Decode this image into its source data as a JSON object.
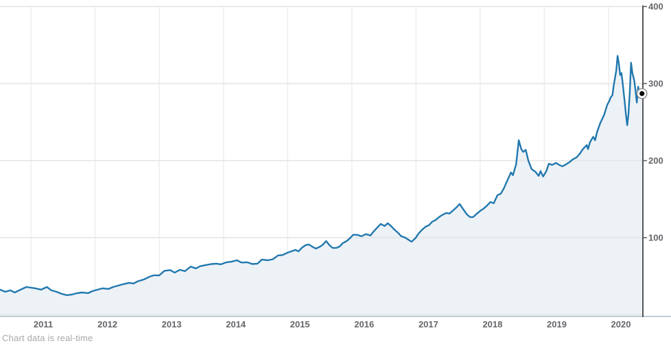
{
  "footer": {
    "note": "Chart data is real-time"
  },
  "colors": {
    "line": "#2178ae",
    "area_fill": "#edf2f7",
    "h_gridline": "#e4e4e4",
    "v_gridline": "#efefef",
    "right_axis": "#55565a",
    "bottom_axis": "#c3cdd4",
    "tick_label": "#65666a",
    "marker_center": "#0a0a0a",
    "marker_ring": "#8a8a8a",
    "footnote_text": "#a6a9ab"
  },
  "chart_data": {
    "type": "area",
    "title": "",
    "xlabel": "",
    "ylabel": "",
    "legend": "none",
    "grid": true,
    "x_ticks": [
      2011,
      2012,
      2013,
      2014,
      2015,
      2016,
      2017,
      2018,
      2019,
      2020
    ],
    "y_ticks": [
      100,
      200,
      300,
      400
    ],
    "xlim": [
      2010.52,
      2020.53
    ],
    "ylim": [
      0,
      400
    ],
    "y_axis_side": "right",
    "latest_marker": {
      "year": 2020.52,
      "price": 287.0
    },
    "points": [
      [
        2010.52,
        32.5
      ],
      [
        2010.6,
        29.8
      ],
      [
        2010.68,
        31.6
      ],
      [
        2010.75,
        28.9
      ],
      [
        2010.84,
        32.5
      ],
      [
        2010.93,
        36.0
      ],
      [
        2011.0,
        35.1
      ],
      [
        2011.07,
        34.3
      ],
      [
        2011.16,
        32.5
      ],
      [
        2011.25,
        36.0
      ],
      [
        2011.32,
        31.6
      ],
      [
        2011.4,
        29.8
      ],
      [
        2011.48,
        27.1
      ],
      [
        2011.56,
        25.4
      ],
      [
        2011.64,
        26.2
      ],
      [
        2011.72,
        28.0
      ],
      [
        2011.8,
        28.9
      ],
      [
        2011.89,
        28.0
      ],
      [
        2011.96,
        30.7
      ],
      [
        2012.04,
        32.5
      ],
      [
        2012.12,
        34.3
      ],
      [
        2012.21,
        33.4
      ],
      [
        2012.28,
        36.0
      ],
      [
        2012.36,
        37.8
      ],
      [
        2012.44,
        39.6
      ],
      [
        2012.53,
        41.4
      ],
      [
        2012.6,
        40.5
      ],
      [
        2012.66,
        43.2
      ],
      [
        2012.76,
        45.8
      ],
      [
        2012.85,
        49.4
      ],
      [
        2012.92,
        51.2
      ],
      [
        2013.0,
        51.0
      ],
      [
        2013.08,
        57.0
      ],
      [
        2013.17,
        58.0
      ],
      [
        2013.24,
        54.7
      ],
      [
        2013.32,
        58.3
      ],
      [
        2013.4,
        56.5
      ],
      [
        2013.49,
        62.5
      ],
      [
        2013.57,
        60.1
      ],
      [
        2013.64,
        63.0
      ],
      [
        2013.73,
        64.5
      ],
      [
        2013.81,
        65.8
      ],
      [
        2013.89,
        66.3
      ],
      [
        2013.96,
        65.4
      ],
      [
        2014.05,
        68.1
      ],
      [
        2014.13,
        69.0
      ],
      [
        2014.21,
        70.7
      ],
      [
        2014.28,
        67.7
      ],
      [
        2014.37,
        68.1
      ],
      [
        2014.45,
        65.8
      ],
      [
        2014.53,
        66.3
      ],
      [
        2014.6,
        71.6
      ],
      [
        2014.69,
        70.7
      ],
      [
        2014.77,
        72.0
      ],
      [
        2014.85,
        77.0
      ],
      [
        2014.92,
        77.5
      ],
      [
        2015.0,
        80.5
      ],
      [
        2015.06,
        82.3
      ],
      [
        2015.12,
        84.1
      ],
      [
        2015.17,
        82.3
      ],
      [
        2015.22,
        86.8
      ],
      [
        2015.28,
        90.3
      ],
      [
        2015.33,
        91.2
      ],
      [
        2015.38,
        88.5
      ],
      [
        2015.44,
        85.9
      ],
      [
        2015.49,
        87.7
      ],
      [
        2015.54,
        90.3
      ],
      [
        2015.6,
        95.6
      ],
      [
        2015.65,
        90.3
      ],
      [
        2015.7,
        86.8
      ],
      [
        2015.76,
        86.8
      ],
      [
        2015.81,
        88.5
      ],
      [
        2015.86,
        93.0
      ],
      [
        2015.92,
        95.6
      ],
      [
        2015.97,
        99.2
      ],
      [
        2016.02,
        103.7
      ],
      [
        2016.08,
        103.7
      ],
      [
        2016.15,
        101.9
      ],
      [
        2016.22,
        104.6
      ],
      [
        2016.29,
        102.8
      ],
      [
        2016.34,
        108.1
      ],
      [
        2016.4,
        113.4
      ],
      [
        2016.45,
        117.9
      ],
      [
        2016.51,
        115.2
      ],
      [
        2016.56,
        118.8
      ],
      [
        2016.61,
        115.2
      ],
      [
        2016.66,
        110.8
      ],
      [
        2016.72,
        106.3
      ],
      [
        2016.77,
        101.9
      ],
      [
        2016.83,
        100.1
      ],
      [
        2016.88,
        97.4
      ],
      [
        2016.93,
        94.8
      ],
      [
        2016.99,
        99.2
      ],
      [
        2017.04,
        105.4
      ],
      [
        2017.09,
        110.0
      ],
      [
        2017.15,
        114.3
      ],
      [
        2017.2,
        116.1
      ],
      [
        2017.25,
        120.6
      ],
      [
        2017.31,
        123.2
      ],
      [
        2017.36,
        126.8
      ],
      [
        2017.41,
        129.5
      ],
      [
        2017.47,
        132.1
      ],
      [
        2017.52,
        131.3
      ],
      [
        2017.57,
        134.8
      ],
      [
        2017.63,
        139.3
      ],
      [
        2017.68,
        143.7
      ],
      [
        2017.73,
        137.5
      ],
      [
        2017.79,
        130.4
      ],
      [
        2017.84,
        126.8
      ],
      [
        2017.89,
        126.8
      ],
      [
        2017.95,
        131.3
      ],
      [
        2018.0,
        134.8
      ],
      [
        2018.05,
        137.5
      ],
      [
        2018.11,
        142.0
      ],
      [
        2018.16,
        146.4
      ],
      [
        2018.21,
        144.6
      ],
      [
        2018.27,
        155.3
      ],
      [
        2018.32,
        157.1
      ],
      [
        2018.37,
        164.2
      ],
      [
        2018.43,
        175.7
      ],
      [
        2018.48,
        184.6
      ],
      [
        2018.51,
        181.1
      ],
      [
        2018.56,
        195.3
      ],
      [
        2018.6,
        226.5
      ],
      [
        2018.64,
        214.9
      ],
      [
        2018.67,
        211.3
      ],
      [
        2018.71,
        214.0
      ],
      [
        2018.75,
        199.8
      ],
      [
        2018.8,
        189.1
      ],
      [
        2018.86,
        185.5
      ],
      [
        2018.91,
        180.2
      ],
      [
        2018.94,
        186.4
      ],
      [
        2018.98,
        179.3
      ],
      [
        2019.03,
        186.4
      ],
      [
        2019.07,
        196.0
      ],
      [
        2019.12,
        194.4
      ],
      [
        2019.18,
        197.1
      ],
      [
        2019.23,
        194.4
      ],
      [
        2019.28,
        192.6
      ],
      [
        2019.34,
        195.3
      ],
      [
        2019.39,
        198.0
      ],
      [
        2019.44,
        201.5
      ],
      [
        2019.5,
        204.2
      ],
      [
        2019.55,
        208.7
      ],
      [
        2019.6,
        214.9
      ],
      [
        2019.66,
        220.2
      ],
      [
        2019.68,
        214.9
      ],
      [
        2019.71,
        223.8
      ],
      [
        2019.76,
        230.9
      ],
      [
        2019.79,
        226.5
      ],
      [
        2019.82,
        237.1
      ],
      [
        2019.87,
        248.7
      ],
      [
        2019.93,
        259.4
      ],
      [
        2019.98,
        272.7
      ],
      [
        2020.01,
        277.2
      ],
      [
        2020.03,
        281.6
      ],
      [
        2020.06,
        285.2
      ],
      [
        2020.08,
        297.6
      ],
      [
        2020.12,
        317.2
      ],
      [
        2020.14,
        335.9
      ],
      [
        2020.16,
        326.1
      ],
      [
        2020.18,
        311.0
      ],
      [
        2020.2,
        313.6
      ],
      [
        2020.22,
        300.3
      ],
      [
        2020.25,
        277.2
      ],
      [
        2020.27,
        260.3
      ],
      [
        2020.29,
        246.0
      ],
      [
        2020.31,
        260.3
      ],
      [
        2020.33,
        288.8
      ],
      [
        2020.35,
        327.0
      ],
      [
        2020.37,
        313.6
      ],
      [
        2020.4,
        303.9
      ],
      [
        2020.42,
        290.5
      ],
      [
        2020.44,
        275.4
      ],
      [
        2020.46,
        295.9
      ],
      [
        2020.48,
        287.9
      ],
      [
        2020.5,
        285.2
      ],
      [
        2020.52,
        287.0
      ]
    ]
  }
}
